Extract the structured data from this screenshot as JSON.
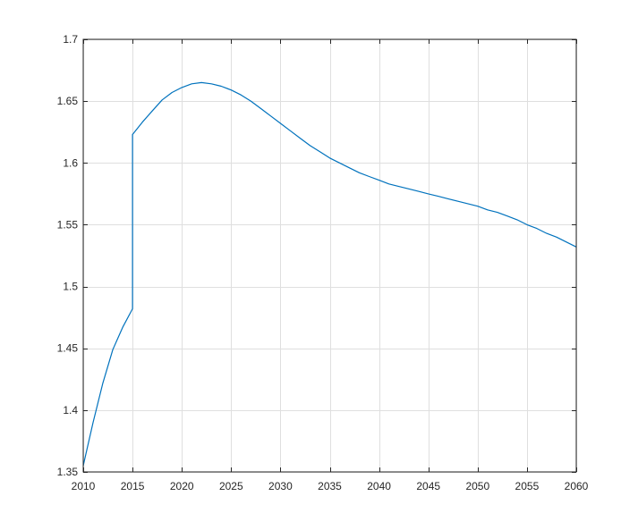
{
  "chart_data": {
    "type": "line",
    "title": "",
    "xlabel": "",
    "ylabel": "",
    "xlim": [
      2010,
      2060
    ],
    "ylim": [
      1.35,
      1.7
    ],
    "grid": true,
    "xticks": [
      2010,
      2015,
      2020,
      2025,
      2030,
      2035,
      2040,
      2045,
      2050,
      2055,
      2060
    ],
    "xtick_labels": [
      "2010",
      "2015",
      "2020",
      "2025",
      "2030",
      "2035",
      "2040",
      "2045",
      "2050",
      "2055",
      "2060"
    ],
    "yticks": [
      1.35,
      1.4,
      1.45,
      1.5,
      1.55,
      1.6,
      1.65,
      1.7
    ],
    "ytick_labels": [
      "1.35",
      "1.4",
      "1.45",
      "1.5",
      "1.55",
      "1.6",
      "1.65",
      "1.7"
    ],
    "colors": {
      "series": "#0072bd",
      "grid": "#dfdfdf",
      "axes": "#262626"
    },
    "series": [
      {
        "x": [
          2010,
          2011,
          2012,
          2013,
          2014,
          2015,
          2015,
          2016,
          2017,
          2018,
          2019,
          2020,
          2021,
          2022,
          2023,
          2024,
          2025,
          2026,
          2027,
          2028,
          2029,
          2030,
          2031,
          2032,
          2033,
          2034,
          2035,
          2036,
          2037,
          2038,
          2039,
          2040,
          2041,
          2042,
          2043,
          2044,
          2045,
          2046,
          2047,
          2048,
          2049,
          2050,
          2051,
          2052,
          2053,
          2054,
          2055,
          2056,
          2057,
          2058,
          2059,
          2060
        ],
        "values": [
          1.355,
          1.39,
          1.422,
          1.449,
          1.467,
          1.482,
          1.623,
          1.633,
          1.642,
          1.651,
          1.657,
          1.661,
          1.664,
          1.665,
          1.664,
          1.662,
          1.659,
          1.655,
          1.65,
          1.644,
          1.638,
          1.632,
          1.626,
          1.62,
          1.614,
          1.609,
          1.604,
          1.6,
          1.596,
          1.592,
          1.589,
          1.586,
          1.583,
          1.581,
          1.579,
          1.577,
          1.575,
          1.573,
          1.571,
          1.569,
          1.567,
          1.565,
          1.562,
          1.56,
          1.557,
          1.554,
          1.55,
          1.547,
          1.543,
          1.54,
          1.536,
          1.532
        ]
      }
    ]
  }
}
